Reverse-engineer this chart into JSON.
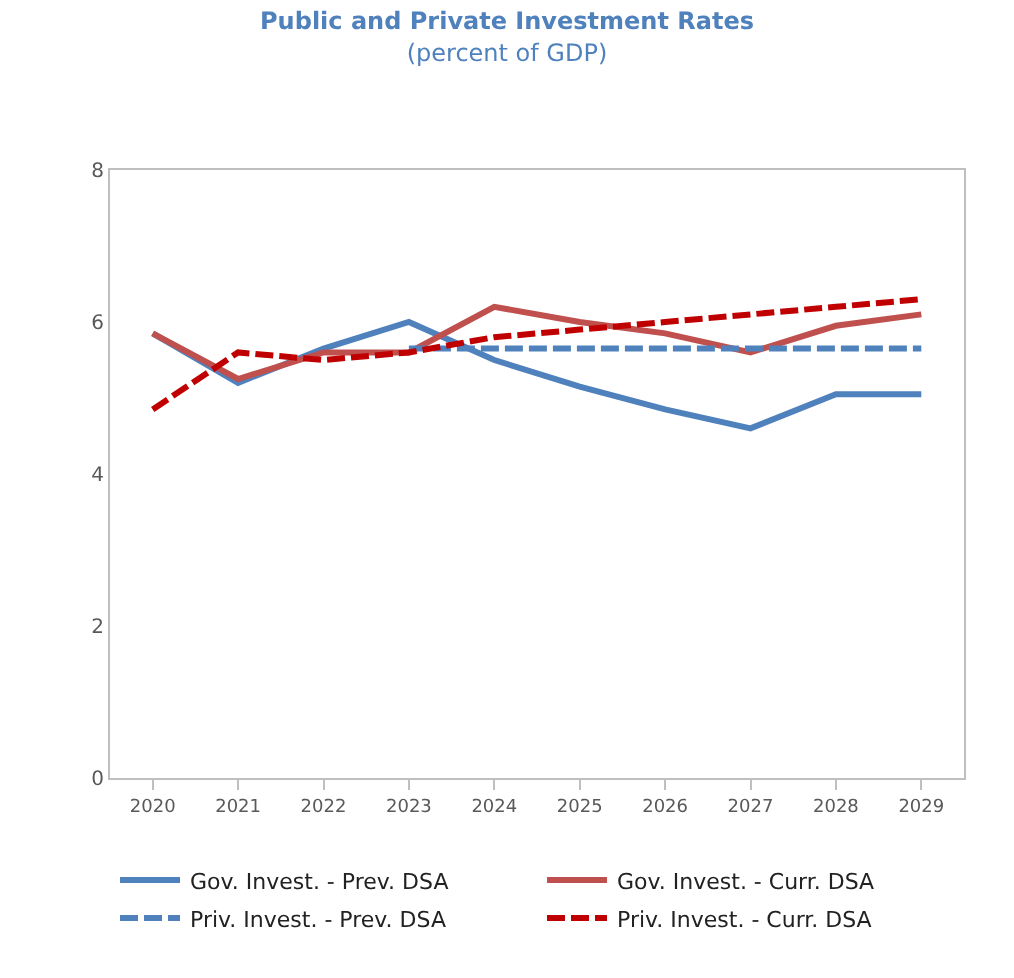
{
  "chart_data": {
    "type": "line",
    "title": "Public and Private Investment Rates",
    "subtitle": "(percent of GDP)",
    "categories": [
      "2020",
      "2021",
      "2022",
      "2023",
      "2024",
      "2025",
      "2026",
      "2027",
      "2028",
      "2029"
    ],
    "ylim": [
      0,
      8
    ],
    "yticks": [
      0,
      2,
      4,
      6,
      8
    ],
    "grid": false,
    "legend": "bottom",
    "marker": "none",
    "series": [
      {
        "name": "Gov. Invest. - Prev. DSA",
        "color": "#4f81bd",
        "line_style": "solid",
        "values": [
          5.85,
          5.2,
          5.65,
          6.0,
          5.5,
          5.15,
          4.85,
          4.6,
          5.05,
          5.05
        ]
      },
      {
        "name": "Gov. Invest. - Curr. DSA",
        "color": "#c0504d",
        "line_style": "solid",
        "values": [
          5.85,
          5.25,
          5.6,
          5.6,
          6.2,
          6.0,
          5.85,
          5.6,
          5.95,
          6.1
        ]
      },
      {
        "name": "Priv. Invest. - Prev. DSA",
        "color": "#4f81bd",
        "line_style": "dashed",
        "values": [
          null,
          null,
          null,
          5.65,
          5.65,
          5.65,
          5.65,
          5.65,
          5.65,
          5.65
        ]
      },
      {
        "name": "Priv. Invest. - Curr. DSA",
        "color": "#c00000",
        "line_style": "dashed",
        "values": [
          4.85,
          5.6,
          5.5,
          5.6,
          5.8,
          5.9,
          6.0,
          6.1,
          6.2,
          6.3
        ]
      }
    ]
  }
}
